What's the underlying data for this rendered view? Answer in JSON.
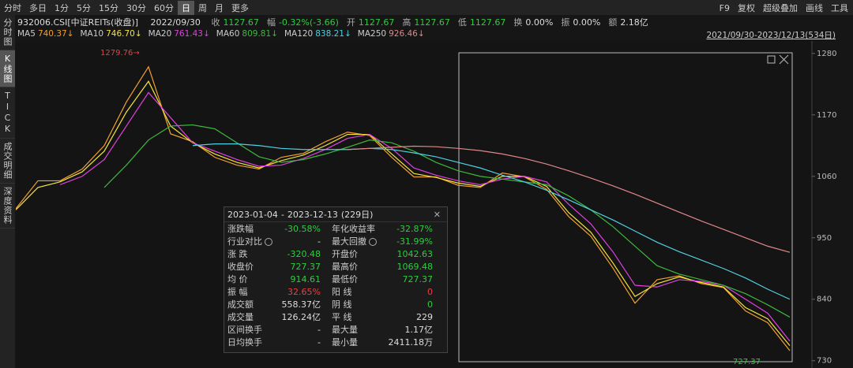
{
  "toolbar": {
    "tabs": [
      "分时",
      "多日",
      "1分",
      "5分",
      "15分",
      "30分",
      "60分",
      "日",
      "周",
      "月",
      "更多"
    ],
    "active_tab": 7,
    "right_items": [
      "F9",
      "复权",
      "超级叠加",
      "画线",
      "工具"
    ]
  },
  "sidebar": {
    "tabs": [
      "分时图",
      "K线图",
      "TICK",
      "成交明细",
      "深度资料"
    ],
    "active_tab": 1
  },
  "info_bar": {
    "code": "932006.CSI[中证REITs(收盘)]",
    "date": "2022/09/30",
    "items": [
      {
        "label": "收",
        "value": "1127.67",
        "color": "#2ecc40"
      },
      {
        "label": "幅",
        "value": "-0.32%(-3.66)",
        "color": "#2ecc40"
      },
      {
        "label": "开",
        "value": "1127.67",
        "color": "#2ecc40"
      },
      {
        "label": "高",
        "value": "1127.67",
        "color": "#2ecc40"
      },
      {
        "label": "低",
        "value": "1127.67",
        "color": "#2ecc40"
      },
      {
        "label": "换",
        "value": "0.00%",
        "color": "#dddddd"
      },
      {
        "label": "振",
        "value": "0.00%",
        "color": "#dddddd"
      },
      {
        "label": "额",
        "value": "2.18亿",
        "color": "#dddddd"
      }
    ]
  },
  "date_range": "2021/09/30-2023/12/13(534日)",
  "chart_data": {
    "type": "line",
    "categories": [
      null,
      null,
      null,
      null,
      null,
      null,
      null,
      null,
      null,
      null,
      null,
      null,
      null,
      null,
      null,
      null,
      null,
      null,
      null,
      null,
      null,
      null,
      null,
      null,
      null,
      null,
      null,
      null,
      null,
      null,
      null,
      null,
      null,
      null,
      null,
      null
    ],
    "ylim": [
      724,
      1298
    ],
    "yticks": [
      730,
      840,
      950,
      1060,
      1170,
      1280
    ],
    "annotations": [
      {
        "text": "1279.76→",
        "color": "#e84040"
      },
      {
        "text": "727.37",
        "color": "#2ecc40"
      }
    ],
    "series": [
      {
        "name": "MA5",
        "legend_value": "740.37↓",
        "color": "#f0a030",
        "values": [
          1002,
          1052,
          1052,
          1073,
          1115,
          1193,
          1256,
          1136,
          1122,
          1094,
          1080,
          1073,
          1094,
          1101,
          1122,
          1139,
          1133,
          1094,
          1059,
          1059,
          1044,
          1040,
          1066,
          1059,
          1037,
          988,
          953,
          896,
          833,
          875,
          882,
          868,
          861,
          819,
          798,
          748
        ]
      },
      {
        "name": "MA10",
        "legend_value": "746.70↓",
        "color": "#f5e43a",
        "values": [
          1000,
          1040,
          1050,
          1068,
          1105,
          1175,
          1230,
          1150,
          1120,
          1100,
          1085,
          1075,
          1088,
          1098,
          1115,
          1135,
          1135,
          1100,
          1065,
          1058,
          1048,
          1042,
          1060,
          1060,
          1042,
          995,
          960,
          905,
          845,
          868,
          880,
          870,
          862,
          825,
          805,
          757
        ]
      },
      {
        "name": "MA20",
        "legend_value": "761.43↓",
        "color": "#e040e0",
        "values": [
          null,
          null,
          1045,
          1060,
          1090,
          1150,
          1210,
          1165,
          1120,
          1105,
          1090,
          1078,
          1080,
          1092,
          1108,
          1128,
          1135,
          1110,
          1075,
          1062,
          1052,
          1045,
          1055,
          1060,
          1050,
          1010,
          975,
          925,
          865,
          862,
          875,
          872,
          865,
          840,
          815,
          765
        ]
      },
      {
        "name": "MA60",
        "legend_value": "809.81↓",
        "color": "#3cb83c",
        "values": [
          null,
          null,
          null,
          null,
          1040,
          1080,
          1125,
          1150,
          1152,
          1145,
          1120,
          1095,
          1085,
          1090,
          1100,
          1112,
          1125,
          1120,
          1105,
          1085,
          1070,
          1060,
          1055,
          1050,
          1045,
          1025,
          1000,
          970,
          935,
          900,
          885,
          875,
          865,
          850,
          830,
          808
        ]
      },
      {
        "name": "MA120",
        "legend_value": "838.21↓",
        "color": "#50d0e0",
        "values": [
          null,
          null,
          null,
          null,
          null,
          null,
          null,
          null,
          1115,
          1118,
          1118,
          1115,
          1110,
          1108,
          1108,
          1108,
          1110,
          1108,
          1102,
          1095,
          1085,
          1075,
          1062,
          1050,
          1035,
          1018,
          1000,
          982,
          962,
          942,
          925,
          910,
          895,
          878,
          858,
          840
        ]
      },
      {
        "name": "MA250",
        "legend_value": "926.46↓",
        "color": "#e08888",
        "values": [
          null,
          null,
          null,
          null,
          null,
          null,
          null,
          null,
          null,
          null,
          null,
          null,
          null,
          null,
          null,
          1108,
          1110,
          1112,
          1114,
          1113,
          1110,
          1106,
          1100,
          1092,
          1082,
          1070,
          1057,
          1043,
          1028,
          1012,
          996,
          980,
          965,
          950,
          935,
          924
        ]
      }
    ]
  },
  "stats_panel": {
    "start": "2023-01-04",
    "sep": "-",
    "end": "2023-12-13",
    "days": "(229日)",
    "rows": [
      {
        "cells": [
          "涨跌幅",
          "-30.58%",
          "年化收益率",
          "-32.87%"
        ],
        "colors": [
          "#2ecc40",
          "#2ecc40"
        ]
      },
      {
        "cells": [
          "行业对比",
          "-",
          "最大回撤",
          "-31.99%"
        ],
        "colors": [
          "#dddddd",
          "#2ecc40"
        ]
      },
      {
        "cells": [
          "涨 跌",
          "-320.48",
          "开盘价",
          "1042.63"
        ],
        "colors": [
          "#2ecc40",
          "#2ecc40"
        ]
      },
      {
        "cells": [
          "收盘价",
          "727.37",
          "最高价",
          "1069.48"
        ],
        "colors": [
          "#2ecc40",
          "#2ecc40"
        ]
      },
      {
        "cells": [
          "均 价",
          "914.61",
          "最低价",
          "727.37"
        ],
        "colors": [
          "#2ecc40",
          "#2ecc40"
        ]
      },
      {
        "cells": [
          "振 幅",
          "32.65%",
          "阳 线",
          "0"
        ],
        "colors": [
          "#e84040",
          "#e84040"
        ]
      },
      {
        "cells": [
          "成交额",
          "558.37亿",
          "阴 线",
          "0"
        ],
        "colors": [
          "#dddddd",
          "#2ecc40"
        ]
      },
      {
        "cells": [
          "成交量",
          "126.24亿",
          "平 线",
          "229"
        ],
        "colors": [
          "#dddddd",
          "#dddddd"
        ]
      },
      {
        "cells": [
          "区间换手",
          "-",
          "最大量",
          "1.17亿"
        ],
        "colors": [
          "#dddddd",
          "#dddddd"
        ]
      },
      {
        "cells": [
          "日均换手",
          "-",
          "最小量",
          "2411.18万"
        ],
        "colors": [
          "#dddddd",
          "#dddddd"
        ]
      }
    ]
  }
}
